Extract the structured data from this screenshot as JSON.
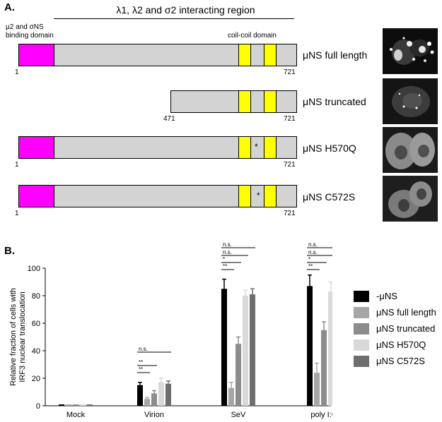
{
  "panel_a": {
    "label": "A.",
    "region_title": "λ1, λ2 and σ2 interacting region",
    "binding_domain_label_1": "μ2 and σNS",
    "binding_domain_label_2": "binding domain",
    "coil_label": "coil-coil domain",
    "mutation_mark": "*",
    "constructs": [
      {
        "name": "μNS full length",
        "start": "1",
        "end": "721"
      },
      {
        "name": "μNS truncated",
        "start": "471",
        "end": "721"
      },
      {
        "name": "μNS H570Q",
        "start": "1",
        "end": "721"
      },
      {
        "name": "μNS C572S",
        "start": "1",
        "end": "721"
      }
    ]
  },
  "panel_b": {
    "label": "B.",
    "legend": [
      "-μNS",
      "μNS full length",
      "μNS truncated",
      "μNS H570Q",
      "μNS C572S"
    ],
    "sig_labels": {
      "ns": "n.s.",
      "star1": "*",
      "star2": "**"
    }
  },
  "chart_data": {
    "type": "bar",
    "categories": [
      "Mock",
      "Virion",
      "SeV",
      "poly I:C"
    ],
    "ylabel": "Relative fraction of cells with IRF3 nuclear translocation",
    "ylim": [
      0,
      100
    ],
    "yticks": [
      0,
      20,
      40,
      60,
      80,
      100
    ],
    "series": [
      {
        "name": "-μNS",
        "color": "#000000",
        "values": [
          1,
          15,
          85,
          87
        ],
        "errors": [
          0,
          2,
          7,
          8
        ]
      },
      {
        "name": "μNS full length",
        "color": "#a6a6a6",
        "values": [
          1,
          5,
          13,
          24
        ],
        "errors": [
          0,
          1,
          4,
          7
        ]
      },
      {
        "name": "μNS truncated",
        "color": "#8c8c8c",
        "values": [
          1,
          9,
          45,
          55
        ],
        "errors": [
          0,
          2,
          5,
          6
        ]
      },
      {
        "name": "μNS H570Q",
        "color": "#d9d9d9",
        "values": [
          1,
          17,
          80,
          83
        ],
        "errors": [
          0,
          3,
          4,
          7
        ]
      },
      {
        "name": "μNS C572S",
        "color": "#6e6e6e",
        "values": [
          1,
          16,
          81,
          85
        ],
        "errors": [
          0,
          2,
          4,
          10
        ]
      }
    ]
  }
}
